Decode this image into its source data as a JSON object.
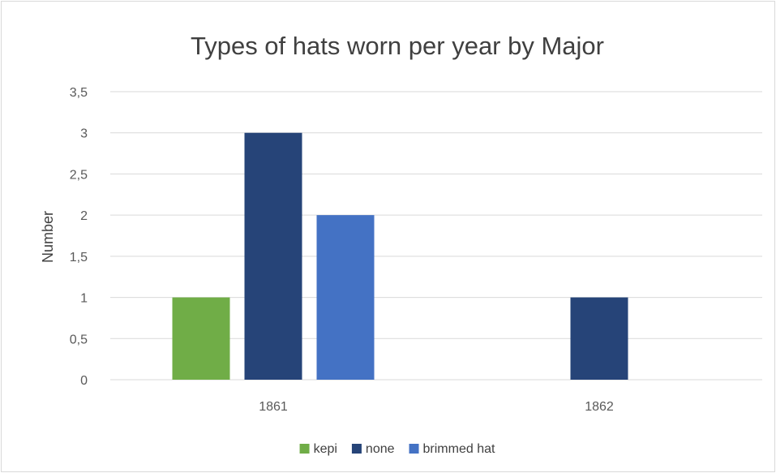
{
  "chart_data": {
    "type": "bar",
    "title": "Types of hats worn per year by Major",
    "xlabel": "",
    "ylabel": "Number",
    "categories": [
      "1861",
      "1862"
    ],
    "series": [
      {
        "name": "kepi",
        "values": [
          1,
          0
        ],
        "color": "#70ad47"
      },
      {
        "name": "none",
        "values": [
          3,
          1
        ],
        "color": "#264478"
      },
      {
        "name": "brimmed hat",
        "values": [
          2,
          0
        ],
        "color": "#4472c4"
      }
    ],
    "ylim": [
      0,
      3.5
    ],
    "yticks": [
      "0",
      "0,5",
      "1",
      "1,5",
      "2",
      "2,5",
      "3",
      "3,5"
    ],
    "grid": true,
    "legend_position": "bottom"
  }
}
